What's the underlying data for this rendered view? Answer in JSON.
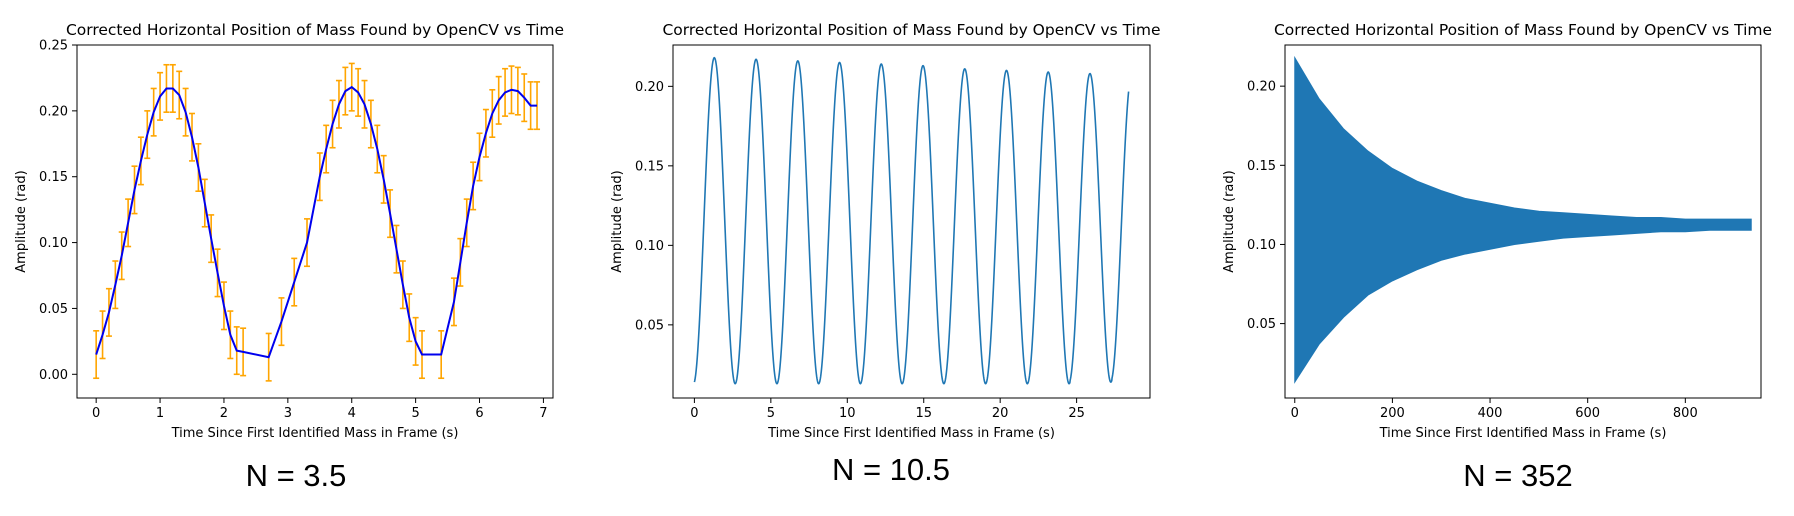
{
  "chart_data": [
    {
      "type": "line",
      "title": "Corrected Horizontal Position of Mass Found by OpenCV vs Time",
      "xlabel": "Time Since First Identified Mass in Frame (s)",
      "ylabel": "Amplitude (rad)",
      "xlim": [
        -0.3,
        7.15
      ],
      "ylim": [
        -0.018,
        0.25
      ],
      "xticks": [
        0,
        1,
        2,
        3,
        4,
        5,
        6,
        7
      ],
      "xtick_labels": [
        "0",
        "1",
        "2",
        "3",
        "4",
        "5",
        "6",
        "7"
      ],
      "yticks": [
        0.0,
        0.05,
        0.1,
        0.15,
        0.2,
        0.25
      ],
      "ytick_labels": [
        "0.00",
        "0.05",
        "0.10",
        "0.15",
        "0.20",
        "0.25"
      ],
      "series": [
        {
          "color": "#0000ee",
          "errorbar_color": "#ffa500",
          "error": 0.018,
          "x": [
            0,
            0.1,
            0.2,
            0.3,
            0.4,
            0.5,
            0.6,
            0.7,
            0.8,
            0.9,
            1.0,
            1.1,
            1.2,
            1.3,
            1.4,
            1.5,
            1.6,
            1.7,
            1.8,
            1.9,
            2.0,
            2.1,
            2.2,
            2.3,
            2.7,
            2.9,
            3.1,
            3.3,
            3.5,
            3.6,
            3.7,
            3.8,
            3.9,
            4.0,
            4.1,
            4.2,
            4.3,
            4.4,
            4.5,
            4.6,
            4.7,
            4.8,
            4.9,
            5.0,
            5.1,
            5.4,
            5.6,
            5.7,
            5.8,
            5.9,
            6.0,
            6.1,
            6.2,
            6.3,
            6.4,
            6.5,
            6.6,
            6.7,
            6.8,
            6.9
          ],
          "y": [
            0.015,
            0.03,
            0.047,
            0.068,
            0.09,
            0.115,
            0.14,
            0.162,
            0.182,
            0.199,
            0.211,
            0.217,
            0.217,
            0.212,
            0.199,
            0.18,
            0.157,
            0.13,
            0.103,
            0.077,
            0.052,
            0.03,
            0.018,
            0.017,
            0.013,
            0.04,
            0.07,
            0.1,
            0.15,
            0.171,
            0.19,
            0.205,
            0.215,
            0.218,
            0.214,
            0.205,
            0.19,
            0.171,
            0.148,
            0.122,
            0.095,
            0.068,
            0.043,
            0.025,
            0.015,
            0.015,
            0.055,
            0.085,
            0.115,
            0.143,
            0.165,
            0.183,
            0.198,
            0.208,
            0.214,
            0.216,
            0.215,
            0.21,
            0.204,
            0.204
          ]
        }
      ]
    },
    {
      "type": "line",
      "title": "Corrected Horizontal Position of Mass Found by OpenCV vs Time",
      "xlabel": "Time Since First Identified Mass in Frame (s)",
      "ylabel": "Amplitude (rad)",
      "xlim": [
        -1.4,
        29.8
      ],
      "ylim": [
        0.004,
        0.226
      ],
      "xticks": [
        0,
        5,
        10,
        15,
        20,
        25
      ],
      "xtick_labels": [
        "0",
        "5",
        "10",
        "15",
        "20",
        "25"
      ],
      "yticks": [
        0.05,
        0.1,
        0.15,
        0.2
      ],
      "ytick_labels": [
        "0.05",
        "0.10",
        "0.15",
        "0.20"
      ],
      "series": [
        {
          "color": "#1f77b4",
          "period_s": 2.73,
          "t_end": 28.4,
          "peaks": [
            0.218,
            0.217,
            0.216,
            0.215,
            0.214,
            0.213,
            0.211,
            0.21,
            0.209,
            0.208,
            0.207
          ],
          "troughs": [
            0.013,
            0.013,
            0.013,
            0.013,
            0.013,
            0.013,
            0.013,
            0.013,
            0.013,
            0.014,
            0.015
          ]
        }
      ]
    },
    {
      "type": "area",
      "title": "Corrected Horizontal Position of Mass Found by OpenCV vs Time",
      "xlabel": "Time Since First Identified Mass in Frame (s)",
      "ylabel": "Amplitude (rad)",
      "xlim": [
        -20,
        955
      ],
      "ylim": [
        0.003,
        0.226
      ],
      "xticks": [
        0,
        200,
        400,
        600,
        800
      ],
      "xtick_labels": [
        "0",
        "200",
        "400",
        "600",
        "800"
      ],
      "yticks": [
        0.05,
        0.1,
        0.15,
        0.2
      ],
      "ytick_labels": [
        "0.05",
        "0.10",
        "0.15",
        "0.20"
      ],
      "series": [
        {
          "color": "#1f77b4",
          "center": 0.1125,
          "initial_half_amplitude": 0.1035,
          "final_x": 935,
          "envelope_x": [
            0,
            50,
            100,
            150,
            200,
            250,
            300,
            350,
            400,
            450,
            500,
            550,
            600,
            650,
            700,
            750,
            800,
            850,
            900,
            935
          ],
          "envelope_upper": [
            0.218,
            0.192,
            0.173,
            0.159,
            0.148,
            0.14,
            0.134,
            0.129,
            0.126,
            0.123,
            0.121,
            0.12,
            0.119,
            0.118,
            0.117,
            0.117,
            0.116,
            0.116,
            0.116,
            0.116
          ],
          "envelope_lower": [
            0.013,
            0.037,
            0.054,
            0.068,
            0.077,
            0.084,
            0.09,
            0.094,
            0.097,
            0.1,
            0.102,
            0.104,
            0.105,
            0.106,
            0.107,
            0.108,
            0.108,
            0.109,
            0.109,
            0.109
          ]
        }
      ]
    }
  ],
  "captions": [
    "N = 3.5",
    "N = 10.5",
    "N = 352"
  ]
}
